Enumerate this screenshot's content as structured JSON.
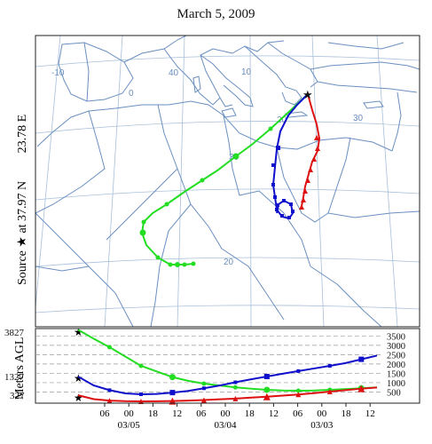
{
  "title": "March 5, 2009",
  "source_label": {
    "prefix": "Source",
    "lat": "at 37.97 N",
    "lon": "23.78 E"
  },
  "map": {
    "lat_labels": [
      "40",
      "30",
      "20"
    ],
    "lon_labels": [
      "-10",
      "0",
      "10",
      "20",
      "30"
    ]
  },
  "profile": {
    "ylabel": "Meters AGL",
    "left_ticks": [
      "3827",
      "1327",
      "327"
    ],
    "right_ticks": [
      "3500",
      "3000",
      "2500",
      "2000",
      "1500",
      "1000",
      "500"
    ],
    "hour_ticks": [
      "06",
      "00",
      "18",
      "12",
      "06",
      "00",
      "18",
      "12",
      "06",
      "00",
      "18",
      "12"
    ],
    "date_ticks": [
      "03/05",
      "03/04",
      "03/03"
    ]
  },
  "colors": {
    "green": "#22dd22",
    "blue": "#1010cc",
    "red": "#dd1111",
    "coast": "#6a8fc0",
    "grid": "#a9bfd9"
  },
  "chart_data": {
    "type": "line",
    "ylabel": "Meters AGL",
    "ylim": [
      0,
      3800
    ],
    "series": [
      {
        "color": "green",
        "start_m": 3827,
        "values": [
          3827,
          3350,
          2900,
          2400,
          1900,
          1600,
          1300,
          1100,
          950,
          850,
          750,
          680,
          620,
          580,
          570,
          580,
          620,
          660,
          700,
          750
        ]
      },
      {
        "color": "blue",
        "start_m": 1327,
        "values": [
          1327,
          850,
          600,
          430,
          380,
          400,
          470,
          560,
          700,
          850,
          1020,
          1180,
          1330,
          1480,
          1620,
          1760,
          1900,
          2050,
          2250,
          2450
        ]
      },
      {
        "color": "red",
        "start_m": 327,
        "values": [
          327,
          120,
          40,
          10,
          0,
          5,
          20,
          40,
          70,
          110,
          150,
          200,
          250,
          310,
          370,
          440,
          520,
          600,
          680,
          740
        ]
      }
    ]
  }
}
